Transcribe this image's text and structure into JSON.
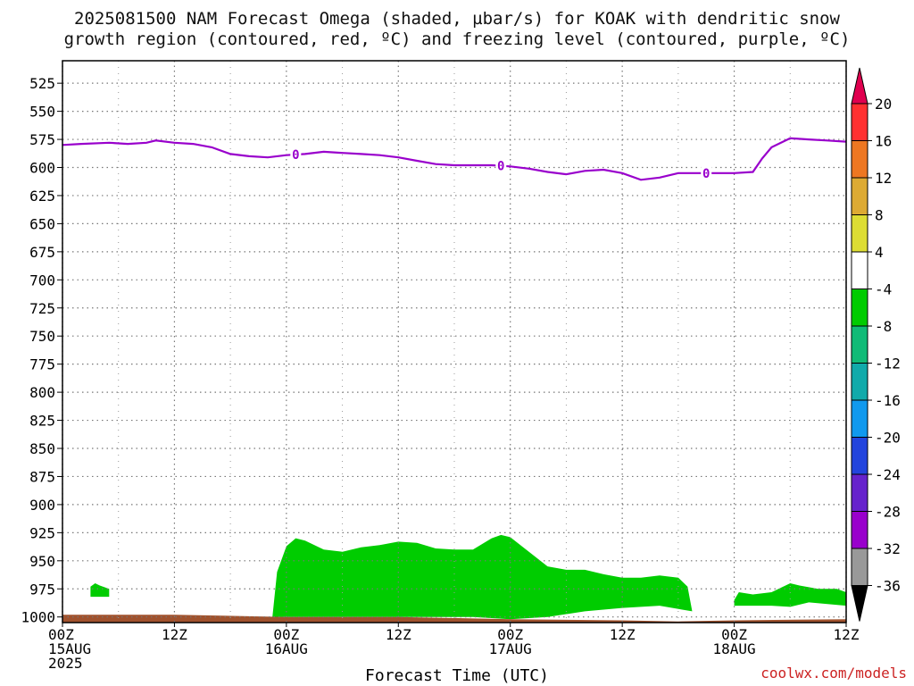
{
  "title_line1": "2025081500 NAM Forecast Omega (shaded, µbar/s) for KOAK with dendritic snow",
  "title_line2": "growth region (contoured, red, ºC) and freezing level (contoured, purple, ºC)",
  "xlabel": "Forecast Time (UTC)",
  "credit": "coolwx.com/models",
  "chart_data": {
    "type": "heatmap",
    "title": "2025081500 NAM Forecast Omega (shaded, µbar/s) for KOAK with dendritic snow growth region (contoured, red, ºC) and freezing level (contoured, purple, ºC)",
    "xlabel": "Forecast Time (UTC)",
    "ylabel": "",
    "x_range_hours": [
      0,
      84
    ],
    "y_range_hPa": [
      1005,
      505
    ],
    "grid": true,
    "y_ticks": [
      525,
      550,
      575,
      600,
      625,
      650,
      675,
      700,
      725,
      750,
      775,
      800,
      825,
      850,
      875,
      900,
      925,
      950,
      975,
      1000
    ],
    "x_ticks": [
      {
        "hour": 0,
        "line1": "00Z",
        "line2": "15AUG",
        "line3": "2025"
      },
      {
        "hour": 12,
        "line1": "12Z",
        "line2": "",
        "line3": ""
      },
      {
        "hour": 24,
        "line1": "00Z",
        "line2": "16AUG",
        "line3": ""
      },
      {
        "hour": 36,
        "line1": "12Z",
        "line2": "",
        "line3": ""
      },
      {
        "hour": 48,
        "line1": "00Z",
        "line2": "17AUG",
        "line3": ""
      },
      {
        "hour": 60,
        "line1": "12Z",
        "line2": "",
        "line3": ""
      },
      {
        "hour": 72,
        "line1": "00Z",
        "line2": "18AUG",
        "line3": ""
      },
      {
        "hour": 84,
        "line1": "12Z",
        "line2": "",
        "line3": ""
      }
    ],
    "freezing_level": {
      "color": "#9900cc",
      "label": "0",
      "label_hours": [
        25,
        47,
        69
      ],
      "points": [
        [
          0,
          580
        ],
        [
          2,
          579
        ],
        [
          5,
          578
        ],
        [
          7,
          579
        ],
        [
          9,
          578
        ],
        [
          10,
          576
        ],
        [
          12,
          578
        ],
        [
          14,
          579
        ],
        [
          16,
          582
        ],
        [
          18,
          588
        ],
        [
          20,
          590
        ],
        [
          22,
          591
        ],
        [
          24,
          589
        ],
        [
          26,
          588
        ],
        [
          28,
          586
        ],
        [
          30,
          587
        ],
        [
          32,
          588
        ],
        [
          34,
          589
        ],
        [
          36,
          591
        ],
        [
          38,
          594
        ],
        [
          40,
          597
        ],
        [
          42,
          598
        ],
        [
          44,
          598
        ],
        [
          46,
          598
        ],
        [
          48,
          599
        ],
        [
          50,
          601
        ],
        [
          52,
          604
        ],
        [
          54,
          606
        ],
        [
          56,
          603
        ],
        [
          58,
          602
        ],
        [
          60,
          605
        ],
        [
          62,
          611
        ],
        [
          64,
          609
        ],
        [
          66,
          605
        ],
        [
          68,
          605
        ],
        [
          70,
          605
        ],
        [
          72,
          605
        ],
        [
          74,
          604
        ],
        [
          75,
          592
        ],
        [
          76,
          582
        ],
        [
          78,
          574
        ],
        [
          80,
          575
        ],
        [
          82,
          576
        ],
        [
          84,
          577
        ]
      ]
    },
    "omega_regions": [
      {
        "color": "#00cc00",
        "range": "-8 to -4",
        "top": [
          [
            22.5,
            1000
          ],
          [
            23,
            960
          ],
          [
            24,
            937
          ],
          [
            25,
            930
          ],
          [
            26,
            932
          ],
          [
            28,
            940
          ],
          [
            30,
            942
          ],
          [
            32,
            938
          ],
          [
            34,
            936
          ],
          [
            36,
            933
          ],
          [
            38,
            934
          ],
          [
            40,
            939
          ],
          [
            42,
            940
          ],
          [
            44,
            940
          ],
          [
            46,
            930
          ],
          [
            47,
            927
          ],
          [
            48,
            929
          ],
          [
            50,
            942
          ],
          [
            52,
            955
          ],
          [
            54,
            958
          ],
          [
            56,
            958
          ],
          [
            58,
            962
          ],
          [
            60,
            965
          ],
          [
            62,
            965
          ],
          [
            64,
            963
          ],
          [
            66,
            965
          ],
          [
            67,
            973
          ],
          [
            67.5,
            995
          ]
        ],
        "bottom": [
          [
            67.5,
            995
          ],
          [
            64,
            990
          ],
          [
            60,
            992
          ],
          [
            56,
            995
          ],
          [
            52,
            1000
          ],
          [
            48,
            1002
          ],
          [
            44,
            1000
          ],
          [
            40,
            1000
          ],
          [
            36,
            1000
          ],
          [
            32,
            1000
          ],
          [
            28,
            1000
          ],
          [
            24,
            1000
          ],
          [
            22.5,
            1000
          ]
        ]
      },
      {
        "color": "#00cc00",
        "range": "-8 to -4",
        "top": [
          [
            3,
            973
          ],
          [
            3.5,
            970
          ],
          [
            4,
            972
          ],
          [
            5,
            975
          ],
          [
            5,
            982
          ]
        ],
        "bottom": [
          [
            5,
            982
          ],
          [
            3,
            982
          ]
        ]
      },
      {
        "color": "#00cc00",
        "range": "-8 to -4",
        "top": [
          [
            72,
            985
          ],
          [
            72.5,
            978
          ],
          [
            74,
            980
          ],
          [
            76,
            978
          ],
          [
            77,
            974
          ],
          [
            78,
            970
          ],
          [
            79,
            972
          ],
          [
            81,
            975
          ],
          [
            83,
            975
          ],
          [
            84,
            978
          ]
        ],
        "bottom": [
          [
            84,
            990
          ],
          [
            80,
            987
          ],
          [
            78,
            991
          ],
          [
            76,
            990
          ],
          [
            72,
            990
          ]
        ]
      }
    ],
    "surface": {
      "color": "#a0522d",
      "levels": [
        [
          0,
          998
        ],
        [
          12,
          998
        ],
        [
          24,
          1000
        ],
        [
          36,
          1000
        ],
        [
          48,
          1002
        ],
        [
          60,
          1003
        ],
        [
          66,
          1004
        ],
        [
          72,
          1003
        ],
        [
          84,
          1002
        ]
      ]
    },
    "colorbar": {
      "labels": [
        "20",
        "16",
        "12",
        "8",
        "4",
        "-4",
        "-8",
        "-12",
        "-16",
        "-20",
        "-24",
        "-28",
        "-32",
        "-36"
      ],
      "colors": [
        "#e0004f",
        "#ff3030",
        "#ee7722",
        "#ddaa33",
        "#dddd33",
        "#ffffff",
        "#00cc00",
        "#11bb77",
        "#11aaaa",
        "#1199ee",
        "#2244dd",
        "#6622cc",
        "#9900cc",
        "#999999",
        "#000000"
      ]
    }
  }
}
